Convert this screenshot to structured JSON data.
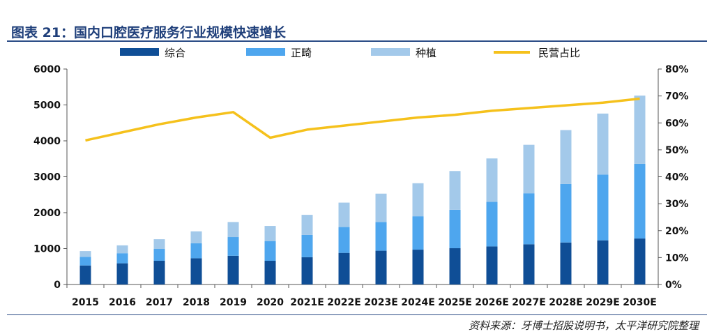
{
  "header": {
    "title": "图表 21：国内口腔医疗服务行业规模快速增长"
  },
  "source": "资料来源：牙博士招股说明书，太平洋研究院整理",
  "chart_data": {
    "type": "bar",
    "stacked": true,
    "categories": [
      "2015",
      "2016",
      "2017",
      "2018",
      "2019",
      "2020",
      "2021E",
      "2022E",
      "2023E",
      "2024E",
      "2025E",
      "2026E",
      "2027E",
      "2028E",
      "2029E",
      "2030E"
    ],
    "series": [
      {
        "name": "综合",
        "color": "#0f4e96",
        "values": [
          530,
          590,
          660,
          730,
          800,
          660,
          760,
          880,
          940,
          970,
          1010,
          1060,
          1120,
          1170,
          1230,
          1280
        ]
      },
      {
        "name": "正畸",
        "color": "#4ea6ee",
        "values": [
          240,
          280,
          330,
          420,
          520,
          550,
          620,
          720,
          800,
          930,
          1070,
          1240,
          1420,
          1630,
          1830,
          2080
        ]
      },
      {
        "name": "种植",
        "color": "#a3c9ea",
        "values": [
          160,
          220,
          270,
          330,
          420,
          420,
          560,
          680,
          790,
          920,
          1080,
          1210,
          1350,
          1500,
          1700,
          1900
        ]
      }
    ],
    "line_series": {
      "name": "民营占比",
      "color": "#f5c11c",
      "axis": "right",
      "values": [
        53.5,
        56.5,
        59.5,
        62,
        64,
        54.5,
        57.5,
        59,
        60.5,
        62,
        63,
        64.5,
        65.5,
        66.5,
        67.5,
        69
      ]
    },
    "y_left": {
      "min": 0,
      "max": 6000,
      "ticks": [
        "0",
        "1000",
        "2000",
        "3000",
        "4000",
        "5000",
        "6000"
      ]
    },
    "y_right": {
      "min": 0,
      "max": 80,
      "ticks": [
        "0%",
        "10%",
        "20%",
        "30%",
        "40%",
        "50%",
        "60%",
        "70%",
        "80%"
      ]
    },
    "legend_position": "top",
    "grid": false
  }
}
